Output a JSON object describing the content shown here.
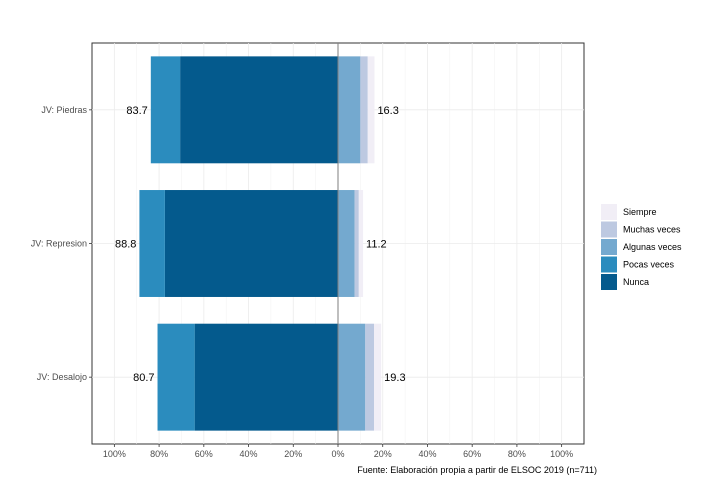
{
  "chart_data": {
    "type": "bar",
    "orientation": "horizontal-diverging",
    "categories": [
      "JV: Piedras",
      "JV: Represion",
      "JV: Desalojo"
    ],
    "series": [
      {
        "name": "Nunca",
        "color": "#045a8d",
        "side": "negative",
        "values": [
          70.6,
          77.4,
          64.1
        ]
      },
      {
        "name": "Pocas veces",
        "color": "#2b8cbe",
        "side": "negative",
        "values": [
          13.1,
          11.4,
          16.6
        ]
      },
      {
        "name": "Algunas veces",
        "color": "#74a9cf",
        "side": "positive",
        "values": [
          10.0,
          7.4,
          12.2
        ]
      },
      {
        "name": "Muchas veces",
        "color": "#bdc9e1",
        "side": "positive",
        "values": [
          3.3,
          1.9,
          3.9
        ]
      },
      {
        "name": "Siempre",
        "color": "#f1eef6",
        "side": "positive",
        "values": [
          3.0,
          1.9,
          3.2
        ]
      }
    ],
    "negative_totals": [
      "83.7",
      "88.8",
      "80.7"
    ],
    "positive_totals": [
      "16.3",
      "11.2",
      "19.3"
    ],
    "x_ticks": [
      "100%",
      "80%",
      "60%",
      "40%",
      "20%",
      "0%",
      "20%",
      "40%",
      "60%",
      "80%",
      "100%"
    ],
    "xlim": [
      -100,
      100
    ],
    "legend_order": [
      "Siempre",
      "Muchas veces",
      "Algunas veces",
      "Pocas veces",
      "Nunca"
    ],
    "legend_position": "right",
    "grid": true,
    "caption": "Fuente: Elaboración propia  a partir de ELSOC 2019 (n=711)"
  }
}
